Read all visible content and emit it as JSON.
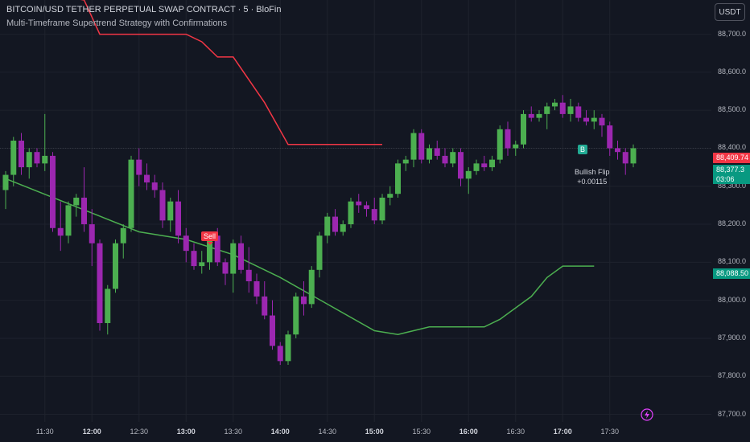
{
  "header": {
    "title": "BITCOIN/USD TETHER PERPETUAL SWAP CONTRACT · 5 · BloFin",
    "indicator": "Multi-Timeframe Supertrend Strategy with Confirmations"
  },
  "currency_button": "USDT",
  "colors": {
    "background": "#131722",
    "bull": "#4caf50",
    "bear": "#9c27b0",
    "supertrend_up": "#4caf50",
    "supertrend_down": "#f23645",
    "tag_red": "#f23645",
    "tag_green": "#089981"
  },
  "price_tags": {
    "red": "88,409.74",
    "green_price": "88,377.3",
    "green_time": "03:06",
    "supertrend": "88,088.50"
  },
  "signals": {
    "sell": "Sell",
    "buy": "B",
    "flip_title": "Bullish Flip",
    "flip_value": "+0.00115"
  },
  "icons": {
    "currency": "currency-icon",
    "bolt": "lightning-icon"
  },
  "chart_data": {
    "type": "candlestick",
    "x_ticks": [
      "11:30",
      "12:00",
      "12:30",
      "13:00",
      "13:30",
      "14:00",
      "14:30",
      "15:00",
      "15:30",
      "16:00",
      "16:30",
      "17:00",
      "17:30"
    ],
    "x_ticks_bold": [
      "12:00",
      "13:00",
      "14:00",
      "15:00",
      "16:00",
      "17:00"
    ],
    "y_ticks": [
      "88,700.0",
      "88,600.0",
      "88,500.0",
      "88,400.0",
      "88,300.0",
      "88,200.0",
      "88,100.0",
      "88,000.0",
      "87,900.0",
      "87,800.0",
      "87,700.0"
    ],
    "ylim": [
      87680,
      88790
    ],
    "candle_interval_min": 5,
    "first_candle": "11:05",
    "candles": [
      [
        88290,
        88340,
        88240,
        88330
      ],
      [
        88330,
        88430,
        88300,
        88420
      ],
      [
        88420,
        88440,
        88330,
        88350
      ],
      [
        88350,
        88400,
        88320,
        88390
      ],
      [
        88390,
        88400,
        88350,
        88360
      ],
      [
        88360,
        88490,
        88340,
        88380
      ],
      [
        88380,
        88390,
        88180,
        88190
      ],
      [
        88190,
        88260,
        88130,
        88170
      ],
      [
        88170,
        88260,
        88150,
        88250
      ],
      [
        88250,
        88280,
        88220,
        88270
      ],
      [
        88270,
        88350,
        88180,
        88200
      ],
      [
        88200,
        88240,
        88090,
        88150
      ],
      [
        88150,
        88160,
        87920,
        87940
      ],
      [
        87940,
        88040,
        87910,
        88030
      ],
      [
        88030,
        88160,
        88020,
        88150
      ],
      [
        88150,
        88200,
        88110,
        88190
      ],
      [
        88190,
        88380,
        88180,
        88370
      ],
      [
        88370,
        88400,
        88300,
        88330
      ],
      [
        88330,
        88360,
        88290,
        88310
      ],
      [
        88310,
        88330,
        88270,
        88290
      ],
      [
        88290,
        88310,
        88190,
        88210
      ],
      [
        88210,
        88270,
        88180,
        88260
      ],
      [
        88260,
        88290,
        88150,
        88170
      ],
      [
        88170,
        88190,
        88100,
        88130
      ],
      [
        88130,
        88150,
        88080,
        88090
      ],
      [
        88090,
        88130,
        88070,
        88100
      ],
      [
        88100,
        88180,
        88080,
        88170
      ],
      [
        88170,
        88190,
        88090,
        88100
      ],
      [
        88100,
        88110,
        88040,
        88070
      ],
      [
        88070,
        88160,
        88020,
        88150
      ],
      [
        88150,
        88170,
        88070,
        88080
      ],
      [
        88080,
        88140,
        88020,
        88050
      ],
      [
        88050,
        88070,
        87990,
        88010
      ],
      [
        88010,
        88050,
        87950,
        87960
      ],
      [
        87960,
        88000,
        87870,
        87880
      ],
      [
        87880,
        87890,
        87830,
        87840
      ],
      [
        87840,
        87920,
        87830,
        87910
      ],
      [
        87910,
        88020,
        87900,
        88010
      ],
      [
        88010,
        88050,
        87960,
        87990
      ],
      [
        87990,
        88090,
        87980,
        88080
      ],
      [
        88080,
        88180,
        88060,
        88170
      ],
      [
        88170,
        88230,
        88150,
        88220
      ],
      [
        88220,
        88240,
        88170,
        88180
      ],
      [
        88180,
        88210,
        88170,
        88200
      ],
      [
        88200,
        88270,
        88190,
        88260
      ],
      [
        88260,
        88280,
        88230,
        88250
      ],
      [
        88250,
        88260,
        88220,
        88240
      ],
      [
        88240,
        88270,
        88200,
        88210
      ],
      [
        88210,
        88280,
        88200,
        88270
      ],
      [
        88270,
        88300,
        88250,
        88280
      ],
      [
        88280,
        88370,
        88270,
        88360
      ],
      [
        88360,
        88380,
        88340,
        88370
      ],
      [
        88370,
        88450,
        88350,
        88440
      ],
      [
        88440,
        88450,
        88360,
        88370
      ],
      [
        88370,
        88410,
        88360,
        88400
      ],
      [
        88400,
        88420,
        88370,
        88380
      ],
      [
        88380,
        88400,
        88350,
        88360
      ],
      [
        88360,
        88400,
        88350,
        88390
      ],
      [
        88390,
        88400,
        88300,
        88320
      ],
      [
        88320,
        88350,
        88280,
        88340
      ],
      [
        88340,
        88370,
        88330,
        88360
      ],
      [
        88360,
        88380,
        88340,
        88350
      ],
      [
        88350,
        88380,
        88340,
        88370
      ],
      [
        88370,
        88460,
        88360,
        88450
      ],
      [
        88450,
        88470,
        88380,
        88400
      ],
      [
        88400,
        88420,
        88380,
        88410
      ],
      [
        88410,
        88500,
        88400,
        88490
      ],
      [
        88490,
        88510,
        88470,
        88480
      ],
      [
        88480,
        88500,
        88470,
        88490
      ],
      [
        88490,
        88520,
        88450,
        88510
      ],
      [
        88510,
        88530,
        88500,
        88520
      ],
      [
        88520,
        88540,
        88480,
        88490
      ],
      [
        88490,
        88530,
        88470,
        88510
      ],
      [
        88510,
        88520,
        88470,
        88480
      ],
      [
        88480,
        88500,
        88460,
        88470
      ],
      [
        88470,
        88500,
        88450,
        88480
      ],
      [
        88480,
        88490,
        88430,
        88460
      ],
      [
        88460,
        88470,
        88380,
        88400
      ],
      [
        88400,
        88420,
        88370,
        88390
      ],
      [
        88390,
        88400,
        88330,
        88360
      ],
      [
        88360,
        88410,
        88350,
        88400
      ]
    ],
    "supertrend_down": [
      [
        "11:40",
        88800
      ],
      [
        "11:55",
        88790
      ],
      [
        "12:05",
        88700
      ],
      [
        "13:00",
        88700
      ],
      [
        "13:10",
        88680
      ],
      [
        "13:20",
        88640
      ],
      [
        "13:30",
        88640
      ],
      [
        "13:50",
        88520
      ],
      [
        "14:05",
        88410
      ],
      [
        "15:05",
        88410
      ]
    ],
    "supertrend_up": [
      [
        "11:05",
        88320
      ],
      [
        "12:30",
        88180
      ],
      [
        "13:00",
        88160
      ],
      [
        "13:30",
        88120
      ],
      [
        "14:00",
        88060
      ],
      [
        "14:30",
        87990
      ],
      [
        "15:00",
        87920
      ],
      [
        "15:15",
        87910
      ],
      [
        "15:25",
        87920
      ],
      [
        "15:35",
        87930
      ],
      [
        "16:00",
        87930
      ],
      [
        "16:10",
        87930
      ],
      [
        "16:20",
        87950
      ],
      [
        "16:30",
        87980
      ],
      [
        "16:40",
        88010
      ],
      [
        "16:50",
        88060
      ],
      [
        "17:00",
        88090
      ],
      [
        "17:20",
        88090
      ]
    ]
  }
}
